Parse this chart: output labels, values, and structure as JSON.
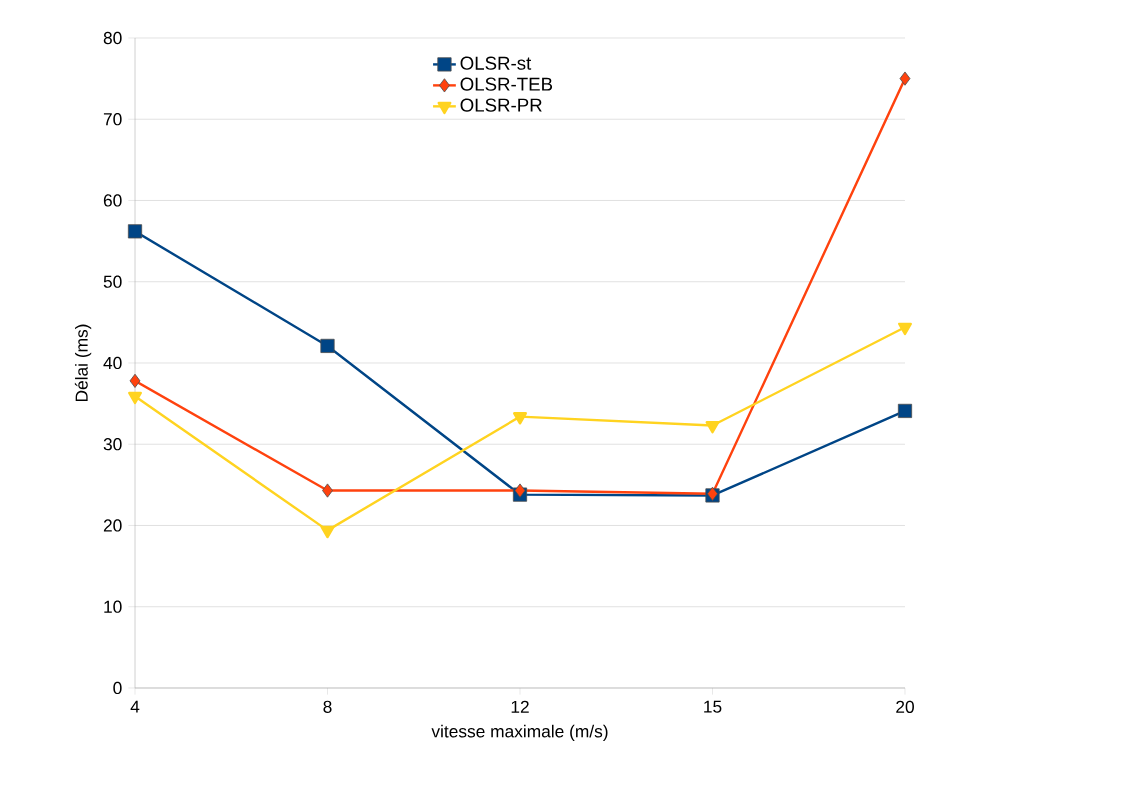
{
  "chart_data": {
    "type": "line",
    "xlabel": "vitesse maximale (m/s)",
    "ylabel": "Délai (ms)",
    "categories": [
      "4",
      "8",
      "12",
      "15",
      "20"
    ],
    "series": [
      {
        "name": "OLSR-st",
        "color": "#004586",
        "marker": "square",
        "values": [
          56.2,
          42.1,
          23.8,
          23.7,
          34.1
        ]
      },
      {
        "name": "OLSR-TEB",
        "color": "#ff420e",
        "marker": "diamond",
        "values": [
          37.8,
          24.3,
          24.3,
          23.9,
          75.0
        ]
      },
      {
        "name": "OLSR-PR",
        "color": "#ffd320",
        "marker": "triangle",
        "values": [
          35.9,
          19.4,
          33.4,
          32.3,
          44.4
        ]
      }
    ],
    "ylim": [
      0,
      80
    ],
    "yticks": [
      0,
      10,
      20,
      30,
      40,
      50,
      60,
      70,
      80
    ],
    "grid": "y",
    "legend": "top",
    "line_style": "solid"
  }
}
